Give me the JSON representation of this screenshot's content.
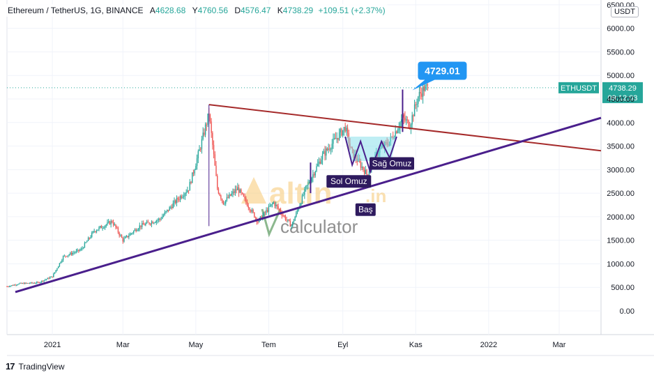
{
  "header": {
    "symbol": "Ethereum / TetherUS, 1G, BINANCE",
    "open_label": "A",
    "open": "4628.68",
    "high_label": "Y",
    "high": "4760.56",
    "low_label": "D",
    "low": "4576.47",
    "close_label": "K",
    "close": "4738.29",
    "change": "+109.51 (+2.37%)"
  },
  "currency": "USDT",
  "footer": {
    "logo": "17",
    "brand": "TradingView"
  },
  "watermark": {
    "brand": "altin",
    "suffix": ".in",
    "subtitle": "calculator"
  },
  "colors": {
    "up": "#26a69a",
    "down": "#ef5350",
    "support": "#4a1f8c",
    "resistance": "#a52a2a",
    "label_bg": "#2e1a5e",
    "callout": "#2196f3",
    "price_tag": "#26a69a",
    "pattern": "#2e7d32"
  },
  "chart_data": {
    "type": "candlestick",
    "title": "Ethereum / TetherUS, 1G, BINANCE",
    "xlabel": "",
    "ylabel": "",
    "y_ticks": [
      "0.00",
      "500.00",
      "1000.00",
      "1500.00",
      "2000.00",
      "2500.00",
      "3000.00",
      "3500.00",
      "4000.00",
      "4500.00",
      "5000.00",
      "5500.00",
      "6000.00",
      "6500.00"
    ],
    "y_tick_values": [
      0,
      500,
      1000,
      1500,
      2000,
      2500,
      3000,
      3500,
      4000,
      4500,
      5000,
      5500,
      6000,
      6500
    ],
    "x_ticks": [
      "2021",
      "Mar",
      "May",
      "Tem",
      "Eyl",
      "Kas",
      "2022",
      "Mar"
    ],
    "x_tick_dates": [
      "2021-01-01",
      "2021-03-01",
      "2021-05-01",
      "2021-07-01",
      "2021-09-01",
      "2021-11-01",
      "2022-01-01",
      "2022-03-01"
    ],
    "ylim": [
      -500,
      6500
    ],
    "xlim": [
      "2020-11-24",
      "2022-04-05"
    ],
    "price_path": [
      [
        "2020-11-24",
        520
      ],
      [
        "2020-12-05",
        580
      ],
      [
        "2020-12-20",
        600
      ],
      [
        "2021-01-01",
        730
      ],
      [
        "2021-01-10",
        1150
      ],
      [
        "2021-01-25",
        1300
      ],
      [
        "2021-02-05",
        1700
      ],
      [
        "2021-02-20",
        1900
      ],
      [
        "2021-03-01",
        1500
      ],
      [
        "2021-03-15",
        1800
      ],
      [
        "2021-04-01",
        1950
      ],
      [
        "2021-04-15",
        2350
      ],
      [
        "2021-04-25",
        2600
      ],
      [
        "2021-05-05",
        3500
      ],
      [
        "2021-05-12",
        4200
      ],
      [
        "2021-05-19",
        2600
      ],
      [
        "2021-05-24",
        2300
      ],
      [
        "2021-06-05",
        2600
      ],
      [
        "2021-06-22",
        1900
      ],
      [
        "2021-07-05",
        2300
      ],
      [
        "2021-07-20",
        1800
      ],
      [
        "2021-08-01",
        2600
      ],
      [
        "2021-08-15",
        3300
      ],
      [
        "2021-09-03",
        3900
      ],
      [
        "2021-09-08",
        3400
      ],
      [
        "2021-09-21",
        2900
      ],
      [
        "2021-10-01",
        3400
      ],
      [
        "2021-10-10",
        3600
      ],
      [
        "2021-10-16",
        3850
      ],
      [
        "2021-10-21",
        4100
      ],
      [
        "2021-10-27",
        3950
      ],
      [
        "2021-11-03",
        4550
      ],
      [
        "2021-11-08",
        4729
      ],
      [
        "2021-11-11",
        4738
      ]
    ],
    "resistance_line": [
      [
        "2021-05-12",
        4380
      ],
      [
        "2022-04-05",
        3400
      ]
    ],
    "support_line": [
      [
        "2020-12-01",
        400
      ],
      [
        "2022-04-05",
        4100
      ]
    ],
    "last_price": 4738.29,
    "pattern_labels": [
      {
        "text": "Sol Omuz",
        "date": "2021-09-06",
        "price": 2750
      },
      {
        "text": "Sağ Omuz",
        "date": "2021-10-12",
        "price": 3130
      },
      {
        "text": "Baş",
        "date": "2021-09-20",
        "price": 2150
      }
    ],
    "callout": {
      "text": "4729.01",
      "date": "2021-10-28",
      "price": 4729.01
    },
    "price_tag": {
      "symbol": "ETHUSDT",
      "price": "4738.29",
      "timer": "09:12:03"
    }
  }
}
